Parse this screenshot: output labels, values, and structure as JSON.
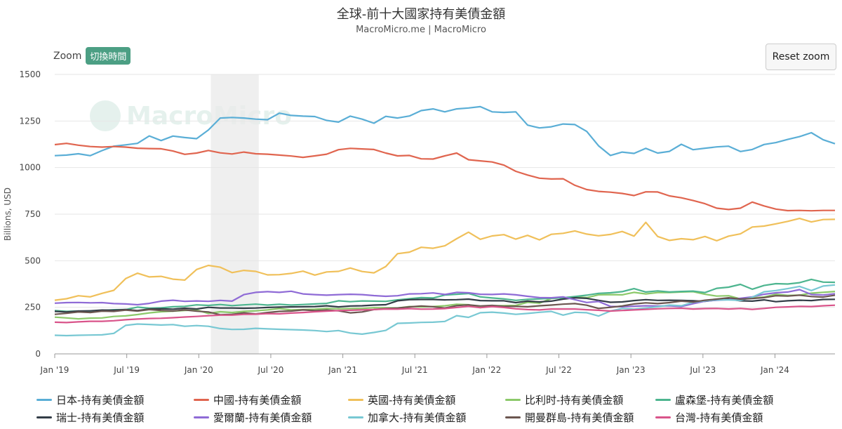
{
  "header": {
    "title": "全球-前十大國家持有美債金額",
    "subtitle": "MacroMicro.me | MacroMicro"
  },
  "toolbar": {
    "zoom_label": "Zoom",
    "toggle_label": "切換時間",
    "reset_label": "Reset zoom",
    "toggle_color": "#4c9f84"
  },
  "watermark": {
    "text": "MacroMicro"
  },
  "chart_data": {
    "type": "line",
    "title": "全球-前十大國家持有美債金額",
    "subtitle": "MacroMicro.me | MacroMicro",
    "ylabel": "Billions, USD",
    "xlabel": "",
    "ylim": [
      0,
      1500
    ],
    "y_ticks": [
      0,
      250,
      500,
      750,
      1000,
      1250,
      1500
    ],
    "x_ticks": [
      "Jan '19",
      "Jul '19",
      "Jan '20",
      "Jul '20",
      "Jan '21",
      "Jul '21",
      "Jan '22",
      "Jul '22",
      "Jan '23",
      "Jul '23",
      "Jan '24"
    ],
    "grid": true,
    "legend_position": "bottom",
    "x_start": "2019-01",
    "x_end": "2024-06",
    "highlight_band": [
      "2020-02",
      "2020-06"
    ],
    "series": [
      {
        "name": "日本-持有美債金額",
        "color": "#5aaed6",
        "values": [
          1064,
          1067,
          1074,
          1064,
          1091,
          1115,
          1122,
          1130,
          1170,
          1145,
          1169,
          1161,
          1155,
          1202,
          1266,
          1269,
          1266,
          1260,
          1257,
          1292,
          1280,
          1276,
          1274,
          1253,
          1244,
          1276,
          1260,
          1238,
          1275,
          1266,
          1277,
          1306,
          1315,
          1299,
          1315,
          1320,
          1327,
          1299,
          1296,
          1299,
          1228,
          1213,
          1219,
          1234,
          1231,
          1194,
          1117,
          1065,
          1083,
          1076,
          1103,
          1078,
          1087,
          1125,
          1096,
          1104,
          1111,
          1115,
          1086,
          1097,
          1124,
          1134,
          1151,
          1166,
          1187,
          1149,
          1128
        ]
      },
      {
        "name": "中國-持有美債金額",
        "color": "#e0654f",
        "values": [
          1123,
          1130,
          1120,
          1113,
          1110,
          1113,
          1110,
          1104,
          1102,
          1101,
          1089,
          1071,
          1078,
          1092,
          1079,
          1073,
          1083,
          1074,
          1072,
          1067,
          1062,
          1055,
          1063,
          1072,
          1096,
          1103,
          1100,
          1097,
          1078,
          1063,
          1065,
          1047,
          1046,
          1063,
          1078,
          1042,
          1036,
          1030,
          1013,
          980,
          960,
          943,
          939,
          940,
          905,
          882,
          872,
          868,
          861,
          850,
          870,
          869,
          848,
          838,
          823,
          806,
          782,
          775,
          782,
          815,
          794,
          777,
          769,
          770,
          768,
          770,
          770
        ]
      },
      {
        "name": "英國-持有美債金額",
        "color": "#f0c05a",
        "values": [
          288,
          296,
          312,
          306,
          325,
          341,
          404,
          433,
          413,
          416,
          401,
          396,
          453,
          475,
          465,
          436,
          448,
          443,
          424,
          425,
          432,
          444,
          423,
          440,
          443,
          461,
          442,
          435,
          469,
          538,
          546,
          572,
          567,
          580,
          618,
          653,
          615,
          633,
          640,
          616,
          636,
          612,
          642,
          647,
          660,
          643,
          634,
          641,
          657,
          632,
          706,
          630,
          609,
          618,
          613,
          630,
          607,
          632,
          644,
          681,
          686,
          698,
          711,
          727,
          708,
          721,
          722
        ]
      },
      {
        "name": "比利时-持有美債金額",
        "color": "#8cc96a",
        "values": [
          197,
          193,
          188,
          192,
          193,
          201,
          204,
          211,
          220,
          226,
          229,
          233,
          235,
          217,
          226,
          222,
          228,
          231,
          236,
          243,
          236,
          238,
          240,
          244,
          242,
          243,
          244,
          248,
          247,
          246,
          254,
          252,
          254,
          258,
          266,
          264,
          248,
          258,
          259,
          260,
          277,
          272,
          297,
          302,
          306,
          302,
          317,
          318,
          317,
          330,
          322,
          329,
          329,
          332,
          334,
          320,
          310,
          312,
          295,
          300,
          305,
          320,
          314,
          315,
          326,
          330,
          335
        ]
      },
      {
        "name": "盧森堡-持有美債金額",
        "color": "#4db58f",
        "values": [
          232,
          228,
          230,
          225,
          232,
          237,
          238,
          251,
          245,
          247,
          253,
          255,
          263,
          260,
          265,
          259,
          263,
          267,
          262,
          266,
          262,
          265,
          268,
          271,
          285,
          280,
          284,
          283,
          282,
          290,
          296,
          302,
          300,
          316,
          320,
          324,
          306,
          300,
          295,
          287,
          293,
          295,
          298,
          301,
          308,
          315,
          325,
          328,
          334,
          350,
          332,
          338,
          332,
          335,
          337,
          329,
          352,
          358,
          373,
          347,
          367,
          377,
          375,
          382,
          400,
          385,
          384
        ]
      },
      {
        "name": "瑞士-持有美債金額",
        "color": "#333d47",
        "values": [
          228,
          225,
          230,
          231,
          235,
          234,
          238,
          232,
          241,
          242,
          240,
          245,
          241,
          250,
          246,
          246,
          245,
          246,
          249,
          251,
          252,
          253,
          254,
          258,
          252,
          257,
          258,
          262,
          264,
          285,
          291,
          292,
          292,
          290,
          291,
          294,
          286,
          285,
          285,
          275,
          283,
          279,
          283,
          294,
          301,
          298,
          287,
          277,
          279,
          286,
          291,
          287,
          288,
          287,
          285,
          282,
          289,
          294,
          285,
          283,
          290,
          280,
          285,
          288,
          286,
          292,
          293
        ]
      },
      {
        "name": "愛爾蘭-持有美債金額",
        "color": "#8f6bd6",
        "values": [
          272,
          275,
          276,
          274,
          275,
          270,
          268,
          264,
          271,
          283,
          288,
          282,
          284,
          282,
          287,
          283,
          318,
          330,
          334,
          330,
          336,
          322,
          318,
          315,
          318,
          320,
          318,
          313,
          309,
          312,
          322,
          323,
          327,
          319,
          330,
          328,
          320,
          319,
          322,
          317,
          309,
          302,
          301,
          306,
          291,
          276,
          281,
          255,
          253,
          256,
          258,
          257,
          258,
          254,
          269,
          283,
          288,
          291,
          298,
          306,
          320,
          328,
          332,
          345,
          319,
          316,
          323
        ]
      },
      {
        "name": "加拿大-持有美債金額",
        "color": "#78c8d3",
        "values": [
          100,
          98,
          100,
          101,
          102,
          110,
          153,
          160,
          158,
          155,
          157,
          148,
          152,
          148,
          136,
          131,
          132,
          137,
          134,
          132,
          130,
          128,
          125,
          120,
          125,
          112,
          106,
          115,
          126,
          164,
          166,
          169,
          170,
          174,
          205,
          196,
          221,
          224,
          219,
          212,
          217,
          223,
          228,
          208,
          223,
          221,
          203,
          230,
          244,
          240,
          246,
          253,
          262,
          258,
          277,
          285,
          290,
          290,
          287,
          304,
          333,
          340,
          350,
          362,
          340,
          364,
          370
        ]
      },
      {
        "name": "開曼群島-持有美債金額",
        "color": "#6b5650",
        "values": [
          212,
          218,
          225,
          222,
          229,
          228,
          235,
          230,
          238,
          233,
          230,
          236,
          229,
          225,
          210,
          212,
          220,
          214,
          222,
          228,
          230,
          236,
          232,
          235,
          231,
          220,
          225,
          238,
          243,
          246,
          252,
          257,
          253,
          246,
          259,
          263,
          257,
          260,
          255,
          255,
          253,
          258,
          262,
          267,
          270,
          261,
          244,
          250,
          257,
          268,
          274,
          270,
          275,
          283,
          278,
          288,
          294,
          301,
          294,
          297,
          302,
          312,
          310,
          315,
          308,
          305,
          315
        ]
      },
      {
        "name": "台灣-持有美債金額",
        "color": "#d9548a",
        "values": [
          170,
          168,
          172,
          175,
          175,
          178,
          183,
          187,
          190,
          191,
          194,
          198,
          201,
          205,
          208,
          208,
          212,
          213,
          216,
          215,
          219,
          222,
          226,
          229,
          232,
          234,
          236,
          238,
          241,
          240,
          243,
          240,
          241,
          243,
          249,
          255,
          248,
          254,
          249,
          242,
          238,
          236,
          241,
          241,
          241,
          237,
          234,
          230,
          233,
          236,
          239,
          242,
          244,
          245,
          241,
          243,
          244,
          241,
          244,
          239,
          244,
          250,
          252,
          255,
          254,
          258,
          261
        ]
      }
    ]
  }
}
